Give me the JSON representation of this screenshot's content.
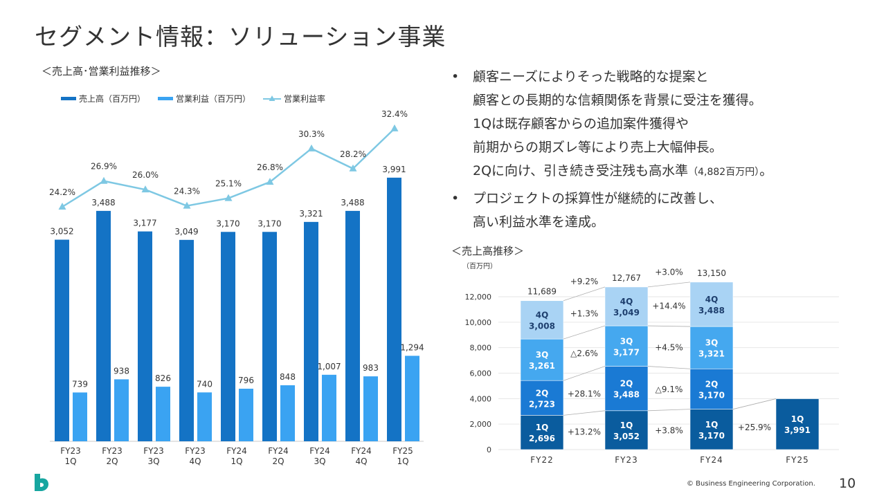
{
  "page": {
    "title": "セグメント情報：ソリューション事業",
    "left_subtitle": "＜売上高･営業利益推移＞",
    "right_subtitle": "＜売上高推移＞",
    "unit_label": "（百万円）",
    "footer": "© Business Engineering Corporation.",
    "page_number": "10"
  },
  "bullets": [
    {
      "lines": [
        "顧客ニーズによりそった戦略的な提案と",
        "顧客との長期的な信頼関係を背景に受注を獲得。",
        "1Qは既存顧客からの追加案件獲得や",
        "前期からの期ズレ等により売上大幅伸長。"
      ],
      "last_main": "2Qに向け、引き続き受注残も高水準",
      "last_small": "（4,882百万円）",
      "last_end": "。"
    },
    {
      "lines": [
        "プロジェクトの採算性が継続的に改善し、",
        "高い利益水準を達成。"
      ]
    }
  ],
  "chart_data": [
    {
      "type": "bar",
      "categories": [
        [
          "FY23",
          "1Q"
        ],
        [
          "FY23",
          "2Q"
        ],
        [
          "FY23",
          "3Q"
        ],
        [
          "FY23",
          "4Q"
        ],
        [
          "FY24",
          "1Q"
        ],
        [
          "FY24",
          "2Q"
        ],
        [
          "FY24",
          "3Q"
        ],
        [
          "FY24",
          "4Q"
        ],
        [
          "FY25",
          "1Q"
        ]
      ],
      "series": [
        {
          "name": "売上高（百万円）",
          "type": "bar",
          "color": "#1473c5",
          "values": [
            3052,
            3488,
            3177,
            3049,
            3170,
            3170,
            3321,
            3488,
            3991
          ],
          "labels": [
            "3,052",
            "3,488",
            "3,177",
            "3,049",
            "3,170",
            "3,170",
            "3,321",
            "3,488",
            "3,991"
          ]
        },
        {
          "name": "営業利益（百万円）",
          "type": "bar",
          "color": "#3aa3f2",
          "values": [
            739,
            938,
            826,
            740,
            796,
            848,
            1007,
            983,
            1294
          ],
          "labels": [
            "739",
            "938",
            "826",
            "740",
            "796",
            "848",
            "1,007",
            "983",
            "1,294"
          ]
        },
        {
          "name": "営業利益率",
          "type": "line",
          "color": "#7ec8e3",
          "values": [
            24.2,
            26.9,
            26.0,
            24.3,
            25.1,
            26.8,
            30.3,
            28.2,
            32.4
          ],
          "labels": [
            "24.2%",
            "26.9%",
            "26.0%",
            "24.3%",
            "25.1%",
            "26.8%",
            "30.3%",
            "28.2%",
            "32.4%"
          ]
        }
      ],
      "legend": "top-left"
    },
    {
      "type": "bar",
      "stacked": true,
      "categories": [
        "FY22",
        "FY23",
        "FY24",
        "FY25"
      ],
      "ylim": [
        0,
        14000
      ],
      "yticks": [
        {
          "v": 0,
          "t": "0"
        },
        {
          "v": 2000,
          "t": "2,000"
        },
        {
          "v": 4000,
          "t": "4,000"
        },
        {
          "v": 6000,
          "t": "6,000"
        },
        {
          "v": 8000,
          "t": "8,000"
        },
        {
          "v": 10000,
          "t": "10,000"
        },
        {
          "v": 12000,
          "t": "12,000"
        }
      ],
      "series": [
        {
          "name": "1Q",
          "color": "#0a5c9e",
          "values": [
            2696,
            3052,
            3170,
            3991
          ],
          "labels": [
            "2,696",
            "3,052",
            "3,170",
            "3,991"
          ]
        },
        {
          "name": "2Q",
          "color": "#1a7ad4",
          "values": [
            2723,
            3488,
            3170,
            null
          ],
          "labels": [
            "2,723",
            "3,488",
            "3,170",
            ""
          ]
        },
        {
          "name": "3Q",
          "color": "#45a8ef",
          "values": [
            3261,
            3177,
            3321,
            null
          ],
          "labels": [
            "3,261",
            "3,177",
            "3,321",
            ""
          ]
        },
        {
          "name": "4Q",
          "color": "#a9d3f4",
          "values": [
            3008,
            3049,
            3488,
            null
          ],
          "labels": [
            "3,008",
            "3,049",
            "3,488",
            ""
          ]
        }
      ],
      "totals": [
        11689,
        12767,
        13150,
        null
      ],
      "total_labels": [
        "11,689",
        "12,767",
        "13,150",
        ""
      ],
      "changes": [
        {
          "total": "+9.2%",
          "q4": "+1.3%",
          "q3": "△2.6%",
          "q2": "+28.1%",
          "q1": "+13.2%"
        },
        {
          "total": "+3.0%",
          "q4": "+14.4%",
          "q3": "+4.5%",
          "q2": "△9.1%",
          "q1": "+3.8%"
        },
        {
          "total": "",
          "q4": "",
          "q3": "",
          "q2": "",
          "q1": "+25.9%"
        }
      ]
    }
  ]
}
